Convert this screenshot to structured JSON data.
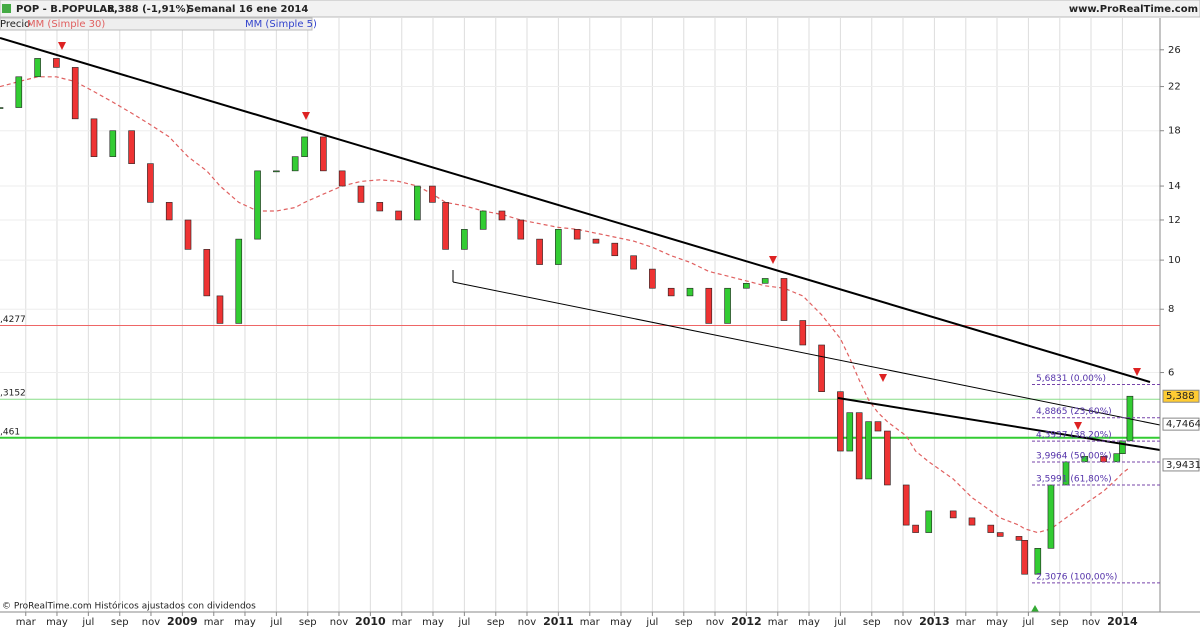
{
  "chart_data": {
    "type": "candlestick",
    "header": {
      "symbol": "POP - B.POPULAR",
      "quote": "5,388 (-1,91%)",
      "period": "Semanal  16 ene 2014",
      "site": "www.ProRealTime.com"
    },
    "footer": "© ProRealTime.com  Históricos ajustados con dividendos",
    "log_scale": true,
    "grid": true,
    "xlim": [
      2008.03,
      2014.2
    ],
    "ylim": [
      2.04,
      32.6
    ],
    "yticks": [
      6,
      8,
      10,
      12,
      14,
      18,
      22,
      26
    ],
    "xticks": [
      {
        "value": 2008.167,
        "label": "mar"
      },
      {
        "value": 2008.333,
        "label": "may"
      },
      {
        "value": 2008.5,
        "label": "jul"
      },
      {
        "value": 2008.667,
        "label": "sep"
      },
      {
        "value": 2008.833,
        "label": "nov"
      },
      2009,
      {
        "value": 2009.167,
        "label": "mar"
      },
      {
        "value": 2009.333,
        "label": "may"
      },
      {
        "value": 2009.5,
        "label": "jul"
      },
      {
        "value": 2009.667,
        "label": "sep"
      },
      {
        "value": 2009.833,
        "label": "nov"
      },
      2010,
      {
        "value": 2010.167,
        "label": "mar"
      },
      {
        "value": 2010.333,
        "label": "may"
      },
      {
        "value": 2010.5,
        "label": "jul"
      },
      {
        "value": 2010.667,
        "label": "sep"
      },
      {
        "value": 2010.833,
        "label": "nov"
      },
      2011,
      {
        "value": 2011.167,
        "label": "mar"
      },
      {
        "value": 2011.333,
        "label": "may"
      },
      {
        "value": 2011.5,
        "label": "jul"
      },
      {
        "value": 2011.667,
        "label": "sep"
      },
      {
        "value": 2011.833,
        "label": "nov"
      },
      2012,
      {
        "value": 2012.167,
        "label": "mar"
      },
      {
        "value": 2012.333,
        "label": "may"
      },
      {
        "value": 2012.5,
        "label": "jul"
      },
      {
        "value": 2012.667,
        "label": "sep"
      },
      {
        "value": 2012.833,
        "label": "nov"
      },
      2013,
      {
        "value": 2013.167,
        "label": "mar"
      },
      {
        "value": 2013.333,
        "label": "may"
      },
      {
        "value": 2013.5,
        "label": "jul"
      },
      {
        "value": 2013.667,
        "label": "sep"
      },
      {
        "value": 2013.833,
        "label": "nov"
      },
      2014
    ],
    "x": [
      2008.03,
      2008.13,
      2008.23,
      2008.33,
      2008.43,
      2008.53,
      2008.63,
      2008.73,
      2008.83,
      2008.93,
      2009.03,
      2009.13,
      2009.2,
      2009.3,
      2009.4,
      2009.5,
      2009.6,
      2009.65,
      2009.75,
      2009.85,
      2009.95,
      2010.05,
      2010.15,
      2010.25,
      2010.33,
      2010.4,
      2010.5,
      2010.6,
      2010.7,
      2010.8,
      2010.9,
      2011.0,
      2011.1,
      2011.2,
      2011.3,
      2011.4,
      2011.5,
      2011.6,
      2011.7,
      2011.8,
      2011.9,
      2012.0,
      2012.1,
      2012.2,
      2012.3,
      2012.4,
      2012.5,
      2012.55,
      2012.6,
      2012.65,
      2012.7,
      2012.75,
      2012.85,
      2012.9,
      2012.97,
      2013.1,
      2013.2,
      2013.3,
      2013.35,
      2013.45,
      2013.48,
      2013.55,
      2013.62,
      2013.7,
      2013.8,
      2013.9,
      2013.97,
      2014.0,
      2014.04
    ],
    "series": [
      {
        "name": "Precio",
        "up_color": "#33cc33",
        "down_color": "#ee3333",
        "values": [
          20,
          23,
          25,
          24,
          19,
          16,
          18,
          15.5,
          13,
          12,
          10.5,
          8.5,
          7.5,
          11,
          15,
          15,
          16,
          17.5,
          15,
          14,
          13,
          12.5,
          12,
          14,
          13,
          10.5,
          11.5,
          12.5,
          12,
          11,
          9.8,
          11.5,
          11,
          10.8,
          10.2,
          9.6,
          8.8,
          8.5,
          8.8,
          7.5,
          8.8,
          9,
          9.2,
          7.6,
          6.8,
          5.5,
          4.2,
          5.0,
          3.7,
          4.8,
          4.6,
          3.6,
          3.0,
          2.9,
          3.2,
          3.1,
          3.0,
          2.9,
          2.85,
          2.8,
          2.4,
          2.7,
          3.6,
          4.0,
          4.1,
          4.0,
          4.15,
          4.4,
          5.388
        ]
      },
      {
        "name": "MM (Simple 30)",
        "color": "#e06060",
        "values": [
          22,
          22.5,
          23,
          23,
          22.5,
          21.5,
          20.5,
          19.5,
          18.5,
          17.5,
          16,
          15,
          14,
          13,
          12.5,
          12.5,
          12.7,
          13,
          13.5,
          14,
          14.3,
          14.4,
          14.3,
          14,
          13.5,
          13,
          12.8,
          12.5,
          12.3,
          12,
          11.8,
          11.6,
          11.5,
          11.3,
          11.1,
          10.9,
          10.6,
          10.2,
          9.9,
          9.5,
          9.3,
          9.1,
          8.9,
          8.8,
          8.5,
          7.8,
          7.0,
          6.4,
          5.8,
          5.3,
          5.0,
          4.8,
          4.5,
          4.2,
          4.0,
          3.7,
          3.4,
          3.2,
          3.1,
          3.0,
          2.95,
          2.9,
          2.95,
          3.1,
          3.3,
          3.5,
          3.7,
          3.8,
          3.9
        ]
      },
      {
        "name": "MM (Simple 5)",
        "color": "#3344cc"
      }
    ],
    "levels": [
      {
        "value": 7.4277,
        "label": ",4277",
        "color": "#ee6666"
      },
      {
        "value": 5.3152,
        "label": ",3152",
        "color": "#88dd88"
      },
      {
        "value": 4.461,
        "label": ",461",
        "color": "#33cc33"
      }
    ],
    "fibonacci": [
      {
        "value": 5.6831,
        "label": "5,6831 (0,00%)"
      },
      {
        "value": 4.8865,
        "label": "4,8865 (23,60%)"
      },
      {
        "value": 4.3937,
        "label": "4,3937 (38,20%)"
      },
      {
        "value": 3.9964,
        "label": "3,9964 (50,00%)"
      },
      {
        "value": 3.5991,
        "label": "3,5991 (61,80%)"
      },
      {
        "value": 2.3076,
        "label": "2,3076 (100,00%)"
      }
    ],
    "price_tags": [
      {
        "value": 5.388,
        "label": "5,388",
        "color": "#ffcc33"
      },
      {
        "value": 4.7464,
        "label": "4,7464",
        "color": "#ffffff"
      },
      {
        "value": 3.9431,
        "label": "3,9431",
        "color": "#ffffff"
      }
    ]
  }
}
